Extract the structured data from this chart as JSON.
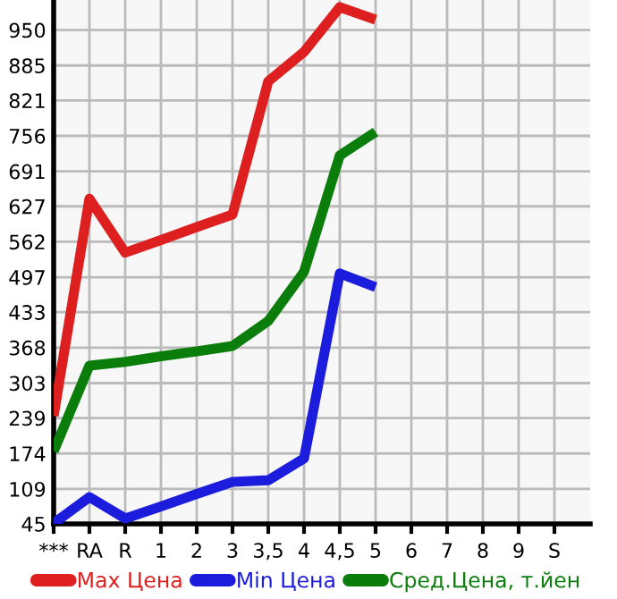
{
  "chart_data": {
    "type": "line",
    "categories": [
      "***",
      "RA",
      "R",
      "1",
      "2",
      "3",
      "3,5",
      "4",
      "4,5",
      "5",
      "6",
      "7",
      "8",
      "9",
      "S"
    ],
    "series": [
      {
        "name": "Max Цена",
        "color": "#dd1f1f",
        "values": [
          243,
          641,
          542,
          565,
          589,
          612,
          856,
          910,
          992,
          969,
          null,
          null,
          null,
          null,
          null
        ]
      },
      {
        "name": "Min Цена",
        "color": "#1c1cdc",
        "values": [
          46,
          94,
          55,
          77,
          100,
          122,
          125,
          165,
          504,
          479,
          null,
          null,
          null,
          null,
          null
        ]
      },
      {
        "name": "Сред.Цена, т.йен",
        "color": "#0a7d0a",
        "values": [
          178,
          335,
          342,
          352,
          361,
          371,
          417,
          507,
          720,
          763,
          null,
          null,
          null,
          null,
          null
        ]
      }
    ],
    "ylim": [
      45,
      1005
    ],
    "yticks": [
      45,
      109,
      174,
      239,
      303,
      368,
      433,
      497,
      562,
      627,
      691,
      756,
      821,
      885,
      950
    ],
    "grid": true,
    "legend": "bottom",
    "marker": "none",
    "line_style": "solid"
  }
}
